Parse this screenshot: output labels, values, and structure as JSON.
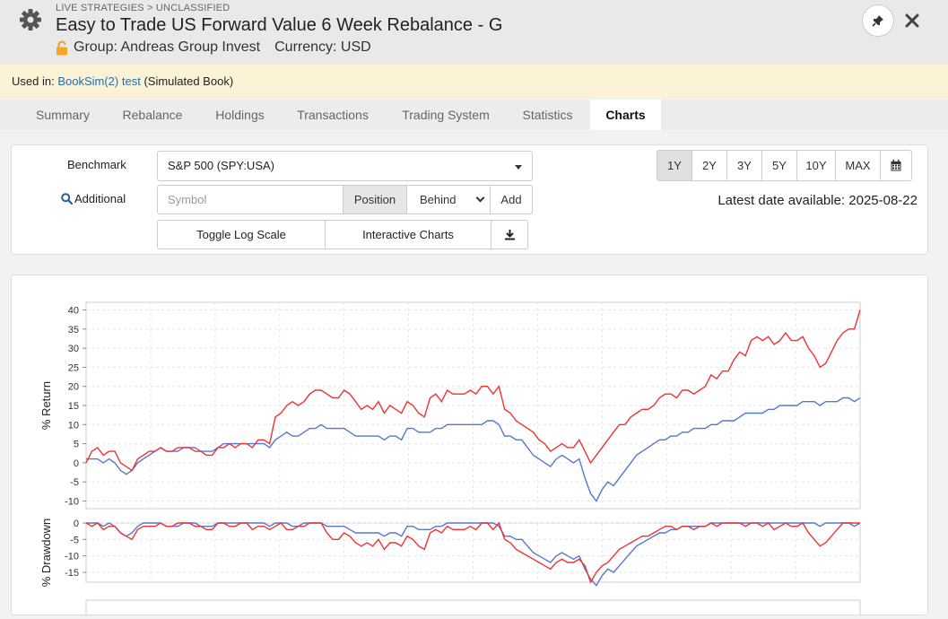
{
  "header": {
    "breadcrumb": "LIVE STRATEGIES > UNCLASSIFIED",
    "title": "Easy to Trade US Forward Value 6 Week Rebalance - G",
    "group": "Group: Andreas Group Invest",
    "currency": "Currency: USD"
  },
  "used_in": {
    "prefix": "Used in:",
    "link": "BookSim(2) test",
    "suffix": "(Simulated Book)"
  },
  "tabs": [
    {
      "label": "Summary"
    },
    {
      "label": "Rebalance"
    },
    {
      "label": "Holdings"
    },
    {
      "label": "Transactions"
    },
    {
      "label": "Trading System"
    },
    {
      "label": "Statistics"
    },
    {
      "label": "Charts",
      "active": true
    }
  ],
  "controls": {
    "benchmark_label": "Benchmark",
    "benchmark_value": "S&P 500 (SPY:USA)",
    "additional_label": "Additional",
    "symbol_placeholder": "Symbol",
    "position_label": "Position",
    "behind_value": "Behind",
    "add_label": "Add",
    "toggle_log_label": "Toggle Log Scale",
    "interactive_label": "Interactive Charts",
    "ranges": [
      "1Y",
      "2Y",
      "3Y",
      "5Y",
      "10Y",
      "MAX"
    ],
    "active_range": "1Y",
    "latest": "Latest date available: 2025-08-22"
  },
  "colors": {
    "strategy": "#ee3333",
    "benchmark": "#5577cc",
    "link": "#2a6aa8",
    "usedin_bg": "#fcf3d7"
  },
  "chart_data": [
    {
      "type": "line",
      "ylabel": "% Return",
      "ylim": [
        -12,
        42
      ],
      "yticks": [
        40,
        35,
        30,
        25,
        20,
        15,
        10,
        5,
        0,
        -5,
        -10
      ],
      "grid": true,
      "series": [
        {
          "values": [
            0,
            3,
            4,
            2,
            3,
            3,
            0,
            -1,
            -2,
            1,
            2,
            3,
            3,
            4,
            3,
            3,
            4,
            4,
            4,
            3,
            3,
            2,
            2,
            4,
            4,
            5,
            4,
            5,
            5,
            4,
            6,
            6,
            5,
            12,
            13,
            15,
            16,
            15,
            16,
            18,
            19,
            19,
            18,
            17,
            17,
            19,
            18,
            16,
            14,
            15,
            14,
            16,
            13,
            15,
            14,
            13,
            16,
            15,
            13,
            12,
            17,
            18,
            16,
            19,
            18,
            18,
            18,
            19,
            18,
            20,
            20,
            18,
            20,
            14,
            13,
            11,
            10,
            9,
            8,
            6,
            5,
            3,
            4,
            5,
            4,
            4,
            6,
            3,
            0,
            2,
            4,
            6,
            8,
            10,
            10,
            12,
            13,
            14,
            14,
            15,
            17,
            18,
            18,
            17,
            19,
            19,
            18,
            19,
            20,
            23,
            22,
            24,
            24,
            27,
            29,
            28,
            32,
            33,
            32,
            33,
            31,
            32,
            34,
            32,
            32,
            33,
            30,
            28,
            25,
            26,
            29,
            32,
            34,
            35,
            35,
            40
          ]
        },
        {
          "values": [
            1,
            1,
            1,
            0,
            1,
            0,
            -2,
            -3,
            -2,
            0,
            1,
            2,
            3,
            4,
            3,
            3,
            3,
            4,
            4,
            4,
            3,
            3,
            3,
            4,
            5,
            5,
            5,
            5,
            5,
            5,
            5,
            5,
            4,
            6,
            7,
            8,
            7,
            7,
            8,
            9,
            9,
            10,
            9,
            9,
            9,
            9,
            8,
            7,
            7,
            7,
            7,
            7,
            6,
            7,
            7,
            6,
            9,
            9,
            8,
            8,
            8,
            9,
            9,
            10,
            10,
            10,
            10,
            10,
            10,
            10,
            11,
            11,
            10,
            7,
            7,
            6,
            6,
            4,
            2,
            1,
            0,
            -1,
            1,
            2,
            1,
            0,
            1,
            -4,
            -8,
            -10,
            -7,
            -5,
            -6,
            -4,
            -2,
            0,
            2,
            3,
            4,
            5,
            6,
            6,
            7,
            7,
            8,
            8,
            9,
            9,
            9,
            10,
            10,
            11,
            11,
            11,
            12,
            13,
            13,
            13,
            13,
            14,
            14,
            15,
            15,
            15,
            15,
            16,
            16,
            16,
            15,
            16,
            16,
            16,
            17,
            17,
            16,
            17
          ]
        }
      ]
    },
    {
      "type": "line",
      "ylabel": "% Drawdown",
      "ylim": [
        -18,
        0
      ],
      "yticks": [
        0,
        -5,
        -10,
        -15
      ],
      "grid": true,
      "series": [
        {
          "values": [
            0,
            -1,
            0,
            -2,
            -1,
            -1,
            -3,
            -4,
            -5,
            -2,
            -1,
            -1,
            -1,
            0,
            -1,
            -1,
            0,
            0,
            0,
            -1,
            -1,
            -2,
            -2,
            0,
            0,
            -1,
            -1,
            0,
            0,
            -2,
            -1,
            -1,
            -2,
            -1,
            0,
            -2,
            -2,
            -1,
            -1,
            0,
            0,
            0,
            -3,
            -5,
            -5,
            -3,
            -4,
            -6,
            -7,
            -6,
            -7,
            -5,
            -8,
            -6,
            -6,
            -7,
            -4,
            -5,
            -7,
            -8,
            -3,
            -2,
            -3,
            -1,
            -2,
            -2,
            -2,
            -1,
            -2,
            0,
            0,
            -2,
            0,
            -5,
            -6,
            -8,
            -9,
            -10,
            -11,
            -12,
            -13,
            -14,
            -12,
            -11,
            -12,
            -12,
            -11,
            -13,
            -18,
            -15,
            -13,
            -12,
            -10,
            -8,
            -7,
            -6,
            -5,
            -4,
            -4,
            -3,
            -2,
            -1,
            -1,
            -2,
            -1,
            -1,
            -2,
            -1,
            -1,
            0,
            -1,
            0,
            0,
            0,
            0,
            -1,
            0,
            0,
            -1,
            0,
            -2,
            -1,
            0,
            -1,
            -1,
            0,
            -3,
            -5,
            -7,
            -6,
            -4,
            -2,
            0,
            0,
            0,
            0
          ]
        },
        {
          "values": [
            0,
            0,
            0,
            -1,
            0,
            -1,
            -3,
            -4,
            -3,
            -1,
            0,
            0,
            0,
            0,
            -1,
            -1,
            -1,
            0,
            0,
            0,
            -1,
            -1,
            -1,
            0,
            0,
            0,
            0,
            0,
            0,
            0,
            0,
            0,
            -1,
            0,
            0,
            0,
            -1,
            -1,
            0,
            0,
            0,
            0,
            -1,
            -1,
            -1,
            -1,
            -2,
            -3,
            -3,
            -3,
            -3,
            -3,
            -4,
            -3,
            -3,
            -4,
            -1,
            -1,
            -2,
            -2,
            -2,
            -1,
            -1,
            0,
            0,
            0,
            0,
            0,
            0,
            0,
            0,
            0,
            -1,
            -4,
            -4,
            -5,
            -5,
            -7,
            -9,
            -10,
            -11,
            -12,
            -10,
            -9,
            -10,
            -11,
            -10,
            -14,
            -17,
            -19,
            -16,
            -14,
            -15,
            -13,
            -11,
            -9,
            -7,
            -6,
            -5,
            -4,
            -3,
            -3,
            -2,
            -2,
            -1,
            -1,
            -1,
            -1,
            -1,
            0,
            0,
            0,
            0,
            0,
            0,
            0,
            0,
            0,
            0,
            0,
            0,
            0,
            0,
            0,
            0,
            0,
            0,
            0,
            -1,
            0,
            0,
            0,
            0,
            0,
            -1,
            0
          ]
        }
      ]
    }
  ]
}
